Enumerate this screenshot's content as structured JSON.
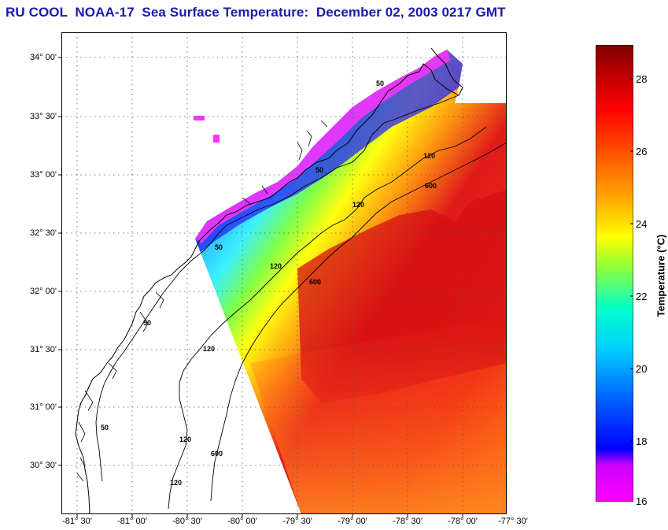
{
  "title": "RU COOL  NOAA-17  Sea Surface Temperature:  December 02, 2003 0217 GMT",
  "colors": {
    "title": "#1a1ab0",
    "land_outline": "#000000",
    "grid": "#555555"
  },
  "map": {
    "latitude_labels": [
      "34° 00'",
      "33° 30'",
      "33° 00'",
      "32° 30'",
      "32° 00'",
      "31° 30'",
      "31° 00'",
      "30° 30'"
    ],
    "longitude_labels": [
      "-81° 30'",
      "-81° 00'",
      "-80° 30'",
      "-80° 00'",
      "-79° 30'",
      "-79° 00'",
      "-78° 30'",
      "-78° 00'",
      "-77° 30'"
    ],
    "contour_labels": [
      "50",
      "50",
      "50",
      "50",
      "50",
      "120",
      "120",
      "120",
      "120",
      "120",
      "120",
      "600",
      "600",
      "600"
    ]
  },
  "colorbar": {
    "title": "Temperature (°C)",
    "ticks": [
      "28",
      "26",
      "24",
      "22",
      "20",
      "18",
      "16"
    ],
    "stops": [
      "#ff00ff",
      "#cc00ff",
      "#0000ff",
      "#00aaff",
      "#00ffff",
      "#33ff66",
      "#ccff00",
      "#ffff00",
      "#ffaa00",
      "#ff5500",
      "#ff0000",
      "#cc0000",
      "#800000"
    ]
  }
}
